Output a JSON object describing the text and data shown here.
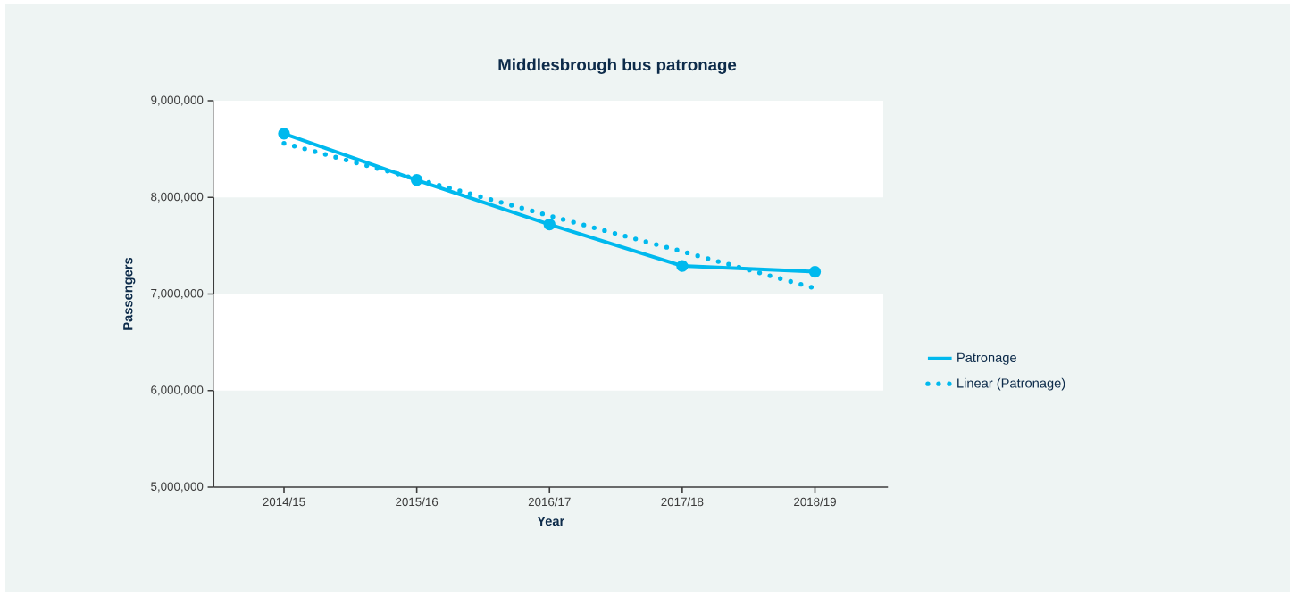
{
  "chart_data": {
    "type": "line",
    "title": "Middlesbrough bus patronage",
    "xlabel": "Year",
    "ylabel": "Passengers",
    "categories": [
      "2014/15",
      "2015/16",
      "2016/17",
      "2017/18",
      "2018/19"
    ],
    "series": [
      {
        "name": "Patronage",
        "color": "#00b9ee",
        "values": [
          8660000,
          8180000,
          7720000,
          7290000,
          7230000
        ],
        "marker": "circle",
        "line_style": "solid"
      },
      {
        "name": "Linear (Patronage)",
        "color": "#00b9ee",
        "values": [
          8560000,
          8190000,
          7810000,
          7440000,
          7060000
        ],
        "marker": "none",
        "line_style": "dotted"
      }
    ],
    "ylim": [
      5000000,
      9000000
    ],
    "yticks": [
      {
        "value": 5000000,
        "label": "5,000,000"
      },
      {
        "value": 6000000,
        "label": "6,000,000"
      },
      {
        "value": 7000000,
        "label": "7,000,000"
      },
      {
        "value": 8000000,
        "label": "8,000,000"
      },
      {
        "value": 9000000,
        "label": "9,000,000"
      }
    ],
    "bands": [
      {
        "axis": "y",
        "from": 6000000,
        "to": 7000000,
        "color": "#ffffff"
      },
      {
        "axis": "y",
        "from": 8000000,
        "to": 9000000,
        "color": "#ffffff"
      }
    ],
    "legend": "right",
    "grid": false
  }
}
